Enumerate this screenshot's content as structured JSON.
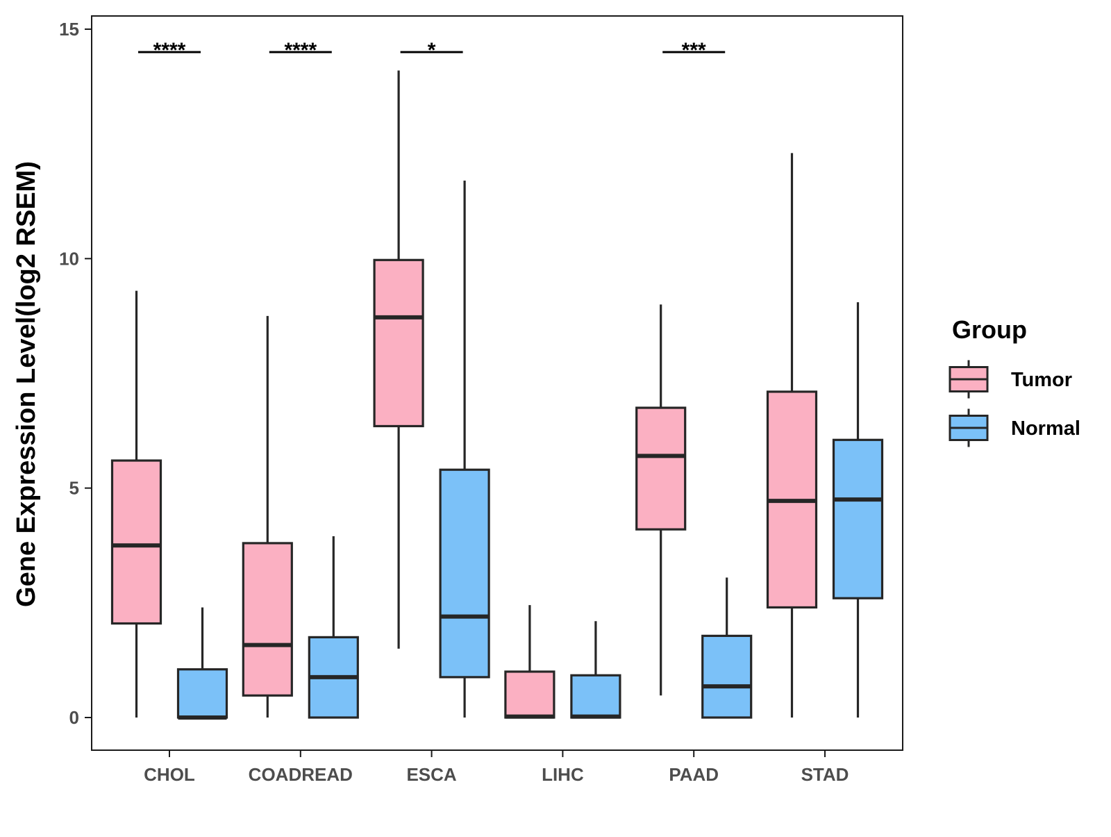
{
  "chart_data": {
    "type": "boxplot",
    "title": "",
    "xlabel": "",
    "ylabel": "Gene Expression Level(log2 RSEM)",
    "ylim": [
      -0.7,
      15.3
    ],
    "yticks": [
      0,
      5,
      10,
      15
    ],
    "categories": [
      "CHOL",
      "COADREAD",
      "ESCA",
      "LIHC",
      "PAAD",
      "STAD"
    ],
    "legend": {
      "title": "Group",
      "position": "right"
    },
    "series": [
      {
        "name": "Tumor",
        "color": "#FBB0C2",
        "boxes": [
          {
            "min": 0.0,
            "q1": 2.05,
            "median": 3.75,
            "q3": 5.6,
            "max": 9.3
          },
          {
            "min": 0.0,
            "q1": 0.48,
            "median": 1.58,
            "q3": 3.8,
            "max": 8.75
          },
          {
            "min": 1.5,
            "q1": 6.35,
            "median": 8.72,
            "q3": 9.97,
            "max": 14.1
          },
          {
            "min": 0.0,
            "q1": 0.0,
            "median": 0.02,
            "q3": 1.0,
            "max": 2.45
          },
          {
            "min": 0.48,
            "q1": 4.1,
            "median": 5.7,
            "q3": 6.75,
            "max": 9.0
          },
          {
            "min": 0.0,
            "q1": 2.4,
            "median": 4.72,
            "q3": 7.1,
            "max": 12.3
          }
        ]
      },
      {
        "name": "Normal",
        "color": "#7BC1F8",
        "boxes": [
          {
            "min": 0.0,
            "q1": 0.0,
            "median": 0.0,
            "q3": 1.05,
            "max": 2.4
          },
          {
            "min": 0.0,
            "q1": 0.0,
            "median": 0.88,
            "q3": 1.75,
            "max": 3.95
          },
          {
            "min": 0.0,
            "q1": 0.88,
            "median": 2.2,
            "q3": 5.4,
            "max": 11.7
          },
          {
            "min": 0.0,
            "q1": 0.0,
            "median": 0.02,
            "q3": 0.92,
            "max": 2.1
          },
          {
            "min": 0.0,
            "q1": 0.0,
            "median": 0.68,
            "q3": 1.78,
            "max": 3.05
          },
          {
            "min": 0.0,
            "q1": 2.6,
            "median": 4.75,
            "q3": 6.05,
            "max": 9.05
          }
        ]
      }
    ],
    "significance": [
      {
        "category": "CHOL",
        "label": "****"
      },
      {
        "category": "COADREAD",
        "label": "****"
      },
      {
        "category": "ESCA",
        "label": "*"
      },
      {
        "category": "PAAD",
        "label": "***"
      }
    ],
    "grid": false
  },
  "colors": {
    "axis": "#1a1a1a",
    "box_outline": "#262626",
    "tick_text": "#4d4d4d"
  }
}
